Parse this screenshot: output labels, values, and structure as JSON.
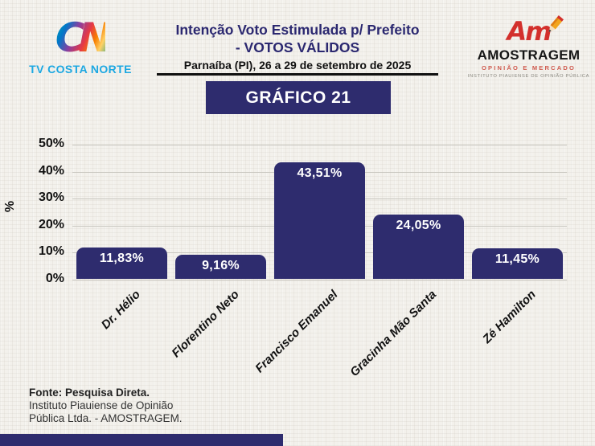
{
  "header": {
    "tv_logo": {
      "mark": "CN",
      "label": "TV COSTA NORTE"
    },
    "title_line1": "Intenção Voto Estimulada p/ Prefeito",
    "title_line2": "- VOTOS VÁLIDOS",
    "subtitle": "Parnaíba (PI), 26 a 29 de setembro de 2025",
    "badge": "GRÁFICO 21",
    "amostragem_logo": {
      "mark": "Am",
      "name": "AMOSTRAGEM",
      "tagline": "OPINIÃO E MERCADO",
      "subtext": "INSTITUTO PIAUIENSE DE OPINIÃO PÚBLICA"
    }
  },
  "chart_data": {
    "type": "bar",
    "categories": [
      "Dr. Hélio",
      "Florentino Neto",
      "Francisco Emanuel",
      "Gracinha Mão Santa",
      "Zé Hamilton"
    ],
    "values": [
      11.83,
      9.16,
      43.51,
      24.05,
      11.45
    ],
    "value_labels": [
      "11,83%",
      "9,16%",
      "43,51%",
      "24,05%",
      "11,45%"
    ],
    "title": "Intenção Voto Estimulada p/ Prefeito - VOTOS VÁLIDOS",
    "xlabel": "",
    "ylabel": "%",
    "ylim": [
      0,
      50
    ],
    "yticks": [
      "0%",
      "10%",
      "20%",
      "30%",
      "40%",
      "50%"
    ],
    "grid": true,
    "legend": "none",
    "bar_color": "#2e2c6e",
    "grid_color": "#c9c7c0"
  },
  "footer": {
    "source_line1": "Fonte: Pesquisa Direta.",
    "source_line2": "Instituto Piauiense de Opinião",
    "source_line3": "Pública Ltda. - AMOSTRAGEM."
  },
  "colors": {
    "navy": "#2e2c6e",
    "title_navy": "#2b2870",
    "tv_blue": "#1da8e2",
    "logo_red": "#d3302c",
    "background": "#f3f1ec"
  }
}
